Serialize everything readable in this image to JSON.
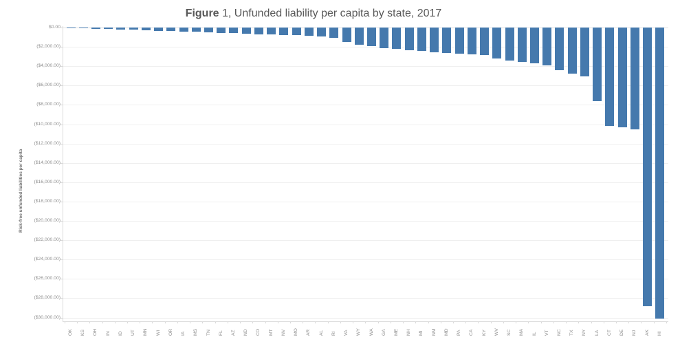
{
  "figure": {
    "title_bold": "Figure",
    "title_rest": " 1, Unfunded liability per capita by state, 2017"
  },
  "chart_data": {
    "type": "bar",
    "title": "Figure 1, Unfunded liability per capita by state, 2017",
    "xlabel": "",
    "ylabel": "Risk-free unfunded liabilities per capita",
    "ylim": [
      -30400,
      0
    ],
    "grid": true,
    "legend": "none",
    "bar_color": "#4579ad",
    "y_tick_values": [
      0,
      -2000,
      -4000,
      -6000,
      -8000,
      -10000,
      -12000,
      -14000,
      -16000,
      -18000,
      -20000,
      -22000,
      -24000,
      -26000,
      -28000,
      -30000
    ],
    "y_tick_labels": [
      "$0.00",
      "($2,000.00)",
      "($4,000.00)",
      "($6,000.00)",
      "($8,000.00)",
      "($10,000.00)",
      "($12,000.00)",
      "($14,000.00)",
      "($16,000.00)",
      "($18,000.00)",
      "($20,000.00)",
      "($22,000.00)",
      "($24,000.00)",
      "($26,000.00)",
      "($28,000.00)",
      "($30,000.00)"
    ],
    "categories": [
      "OK",
      "KS",
      "OH",
      "IN",
      "ID",
      "UT",
      "MN",
      "WI",
      "OR",
      "IA",
      "MS",
      "TN",
      "FL",
      "AZ",
      "ND",
      "CO",
      "MT",
      "NV",
      "MO",
      "AR",
      "AL",
      "RI",
      "VA",
      "WY",
      "WA",
      "GA",
      "ME",
      "NH",
      "MI",
      "NM",
      "MD",
      "PA",
      "CA",
      "KY",
      "WV",
      "SC",
      "MA",
      "IL",
      "VT",
      "NC",
      "TX",
      "NY",
      "LA",
      "CT",
      "DE",
      "NJ",
      "AK",
      "HI"
    ],
    "values": [
      -50,
      -100,
      -130,
      -160,
      -200,
      -240,
      -280,
      -330,
      -380,
      -420,
      -450,
      -500,
      -550,
      -600,
      -650,
      -680,
      -700,
      -750,
      -800,
      -870,
      -930,
      -1050,
      -1500,
      -1800,
      -1950,
      -2100,
      -2200,
      -2350,
      -2400,
      -2550,
      -2650,
      -2700,
      -2750,
      -2850,
      -3200,
      -3450,
      -3550,
      -3700,
      -3900,
      -4400,
      -4750,
      -5050,
      -7650,
      -10150,
      -10300,
      -10550,
      -28800,
      -30100
    ]
  }
}
